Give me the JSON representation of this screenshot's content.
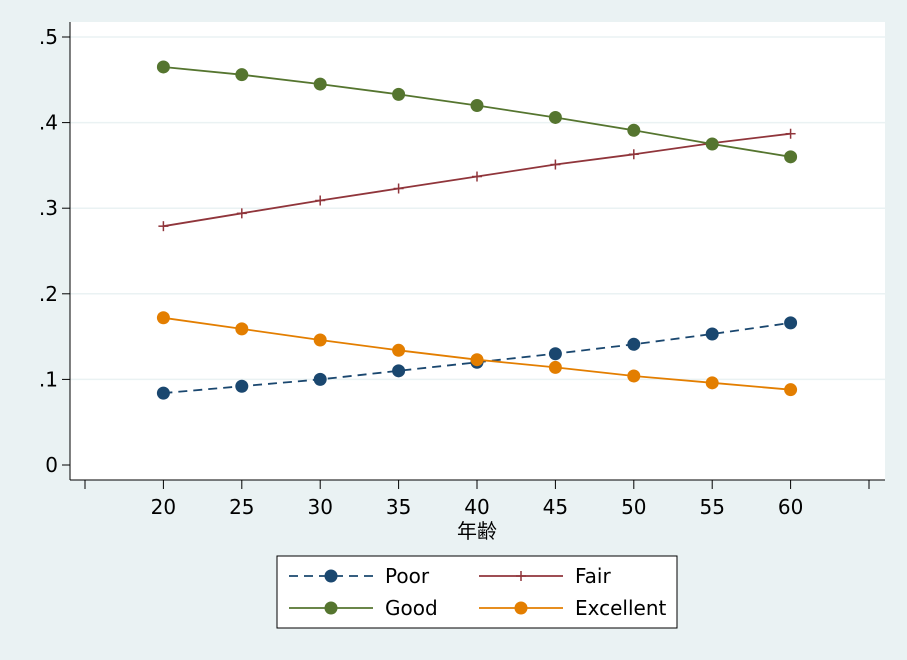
{
  "chart_data": {
    "type": "line",
    "xlabel": "年齢",
    "ylabel": "",
    "x": [
      20,
      25,
      30,
      35,
      40,
      45,
      50,
      55,
      60
    ],
    "xlim": [
      15,
      65
    ],
    "ylim": [
      0,
      0.5
    ],
    "x_ticks": [
      20,
      25,
      30,
      35,
      40,
      45,
      50,
      55,
      60
    ],
    "y_ticks": [
      0,
      0.1,
      0.2,
      0.3,
      0.4,
      0.5
    ],
    "y_tick_labels": [
      "0",
      ".1",
      ".2",
      ".3",
      ".4",
      ".5"
    ],
    "grid": "horizontal",
    "legend_position": "bottom",
    "series": [
      {
        "name": "Poor",
        "color": "#1a476f",
        "marker": "circle",
        "dash": "dashed",
        "values": [
          0.084,
          0.092,
          0.1,
          0.11,
          0.12,
          0.13,
          0.141,
          0.153,
          0.166
        ]
      },
      {
        "name": "Fair",
        "color": "#90353b",
        "marker": "plus",
        "dash": "solid",
        "values": [
          0.279,
          0.294,
          0.309,
          0.323,
          0.337,
          0.351,
          0.363,
          0.376,
          0.387
        ]
      },
      {
        "name": "Good",
        "color": "#55752f",
        "marker": "circle",
        "dash": "solid",
        "values": [
          0.465,
          0.456,
          0.445,
          0.433,
          0.42,
          0.406,
          0.391,
          0.375,
          0.36
        ]
      },
      {
        "name": "Excellent",
        "color": "#e37e00",
        "marker": "circle",
        "dash": "solid",
        "values": [
          0.172,
          0.159,
          0.146,
          0.134,
          0.123,
          0.114,
          0.104,
          0.096,
          0.088
        ]
      }
    ],
    "legend_order": [
      "Poor",
      "Fair",
      "Good",
      "Excellent"
    ]
  }
}
